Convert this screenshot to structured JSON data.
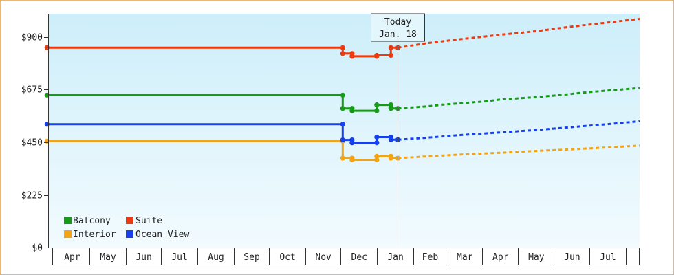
{
  "chart_data": {
    "type": "line",
    "title": "",
    "xlabel": "",
    "ylabel": "",
    "ylim": [
      0,
      1000
    ],
    "y_ticks": [
      {
        "value": 0,
        "label": "$0"
      },
      {
        "value": 225,
        "label": "$225"
      },
      {
        "value": 450,
        "label": "$450"
      },
      {
        "value": 675,
        "label": "$675"
      },
      {
        "value": 900,
        "label": "$900"
      }
    ],
    "x_range": [
      "2025-03-26",
      "2026-08-12"
    ],
    "x_months": [
      {
        "start": "2025-04-01",
        "end": "2025-04-30",
        "label": "Apr"
      },
      {
        "start": "2025-05-01",
        "end": "2025-05-31",
        "label": "May"
      },
      {
        "start": "2025-06-01",
        "end": "2025-06-30",
        "label": "Jun"
      },
      {
        "start": "2025-07-01",
        "end": "2025-07-31",
        "label": "Jul"
      },
      {
        "start": "2025-08-01",
        "end": "2025-08-31",
        "label": "Aug"
      },
      {
        "start": "2025-09-01",
        "end": "2025-09-30",
        "label": "Sep"
      },
      {
        "start": "2025-10-01",
        "end": "2025-10-31",
        "label": "Oct"
      },
      {
        "start": "2025-11-01",
        "end": "2025-11-30",
        "label": "Nov"
      },
      {
        "start": "2025-12-01",
        "end": "2025-12-31",
        "label": "Dec"
      },
      {
        "start": "2026-01-01",
        "end": "2026-01-31",
        "label": "Jan"
      },
      {
        "start": "2026-02-01",
        "end": "2026-02-28",
        "label": "Feb"
      },
      {
        "start": "2026-03-01",
        "end": "2026-03-31",
        "label": "Mar"
      },
      {
        "start": "2026-04-01",
        "end": "2026-04-30",
        "label": "Apr"
      },
      {
        "start": "2026-05-01",
        "end": "2026-05-31",
        "label": "May"
      },
      {
        "start": "2026-06-01",
        "end": "2026-06-30",
        "label": "Jun"
      },
      {
        "start": "2026-07-01",
        "end": "2026-07-31",
        "label": "Jul"
      },
      {
        "start": "2026-08-01",
        "end": "2026-08-12",
        "label": ""
      }
    ],
    "today": {
      "date": "2026-01-18",
      "label_line1": "Today",
      "label_line2": "Jan. 18"
    },
    "grid": false,
    "legend": "bottom-left",
    "series": [
      {
        "name": "Balcony",
        "color": "#169b16",
        "history": [
          {
            "x": "2025-03-25",
            "y": 652
          },
          {
            "x": "2025-12-02",
            "y": 652
          },
          {
            "x": "2025-12-02",
            "y": 595
          },
          {
            "x": "2025-12-10",
            "y": 595
          },
          {
            "x": "2025-12-10",
            "y": 585
          },
          {
            "x": "2025-12-31",
            "y": 585
          },
          {
            "x": "2025-12-31",
            "y": 610
          },
          {
            "x": "2026-01-12",
            "y": 610
          },
          {
            "x": "2026-01-12",
            "y": 595
          },
          {
            "x": "2026-01-18",
            "y": 595
          }
        ],
        "markers": [
          {
            "x": "2025-03-25",
            "y": 652
          },
          {
            "x": "2025-12-02",
            "y": 652
          },
          {
            "x": "2025-12-02",
            "y": 595
          },
          {
            "x": "2025-12-10",
            "y": 595
          },
          {
            "x": "2025-12-10",
            "y": 585
          },
          {
            "x": "2025-12-31",
            "y": 585
          },
          {
            "x": "2025-12-31",
            "y": 610
          },
          {
            "x": "2026-01-12",
            "y": 610
          },
          {
            "x": "2026-01-12",
            "y": 595
          },
          {
            "x": "2026-01-18",
            "y": 595
          }
        ],
        "forecast": [
          {
            "x": "2026-01-18",
            "y": 595
          },
          {
            "x": "2026-02-13",
            "y": 604
          },
          {
            "x": "2026-02-25",
            "y": 611
          },
          {
            "x": "2026-04-03",
            "y": 625
          },
          {
            "x": "2026-04-15",
            "y": 633
          },
          {
            "x": "2026-05-15",
            "y": 643
          },
          {
            "x": "2026-06-05",
            "y": 652
          },
          {
            "x": "2026-06-30",
            "y": 665
          },
          {
            "x": "2026-08-12",
            "y": 682
          }
        ]
      },
      {
        "name": "Suite",
        "color": "#ec3a10",
        "history": [
          {
            "x": "2025-03-25",
            "y": 855
          },
          {
            "x": "2025-12-02",
            "y": 855
          },
          {
            "x": "2025-12-02",
            "y": 830
          },
          {
            "x": "2025-12-10",
            "y": 830
          },
          {
            "x": "2025-12-10",
            "y": 818
          },
          {
            "x": "2025-12-31",
            "y": 818
          },
          {
            "x": "2025-12-31",
            "y": 822
          },
          {
            "x": "2026-01-12",
            "y": 822
          },
          {
            "x": "2026-01-12",
            "y": 855
          },
          {
            "x": "2026-01-18",
            "y": 855
          }
        ],
        "markers": [
          {
            "x": "2025-03-25",
            "y": 855
          },
          {
            "x": "2025-12-02",
            "y": 855
          },
          {
            "x": "2025-12-02",
            "y": 830
          },
          {
            "x": "2025-12-10",
            "y": 830
          },
          {
            "x": "2025-12-10",
            "y": 818
          },
          {
            "x": "2025-12-31",
            "y": 818
          },
          {
            "x": "2025-12-31",
            "y": 822
          },
          {
            "x": "2026-01-12",
            "y": 822
          },
          {
            "x": "2026-01-12",
            "y": 855
          },
          {
            "x": "2026-01-18",
            "y": 855
          }
        ],
        "forecast": [
          {
            "x": "2026-01-18",
            "y": 855
          },
          {
            "x": "2026-02-13",
            "y": 875
          },
          {
            "x": "2026-03-10",
            "y": 890
          },
          {
            "x": "2026-04-15",
            "y": 910
          },
          {
            "x": "2026-05-15",
            "y": 925
          },
          {
            "x": "2026-06-15",
            "y": 945
          },
          {
            "x": "2026-07-15",
            "y": 962
          },
          {
            "x": "2026-08-12",
            "y": 978
          }
        ]
      },
      {
        "name": "Interior",
        "color": "#f2a414",
        "history": [
          {
            "x": "2025-03-25",
            "y": 455
          },
          {
            "x": "2025-12-02",
            "y": 455
          },
          {
            "x": "2025-12-02",
            "y": 382
          },
          {
            "x": "2025-12-10",
            "y": 382
          },
          {
            "x": "2025-12-10",
            "y": 375
          },
          {
            "x": "2025-12-31",
            "y": 375
          },
          {
            "x": "2025-12-31",
            "y": 390
          },
          {
            "x": "2026-01-12",
            "y": 390
          },
          {
            "x": "2026-01-12",
            "y": 382
          },
          {
            "x": "2026-01-18",
            "y": 382
          }
        ],
        "markers": [
          {
            "x": "2025-03-25",
            "y": 455
          },
          {
            "x": "2025-12-02",
            "y": 455
          },
          {
            "x": "2025-12-02",
            "y": 382
          },
          {
            "x": "2025-12-10",
            "y": 382
          },
          {
            "x": "2025-12-10",
            "y": 375
          },
          {
            "x": "2025-12-31",
            "y": 375
          },
          {
            "x": "2025-12-31",
            "y": 390
          },
          {
            "x": "2026-01-12",
            "y": 390
          },
          {
            "x": "2026-01-12",
            "y": 382
          },
          {
            "x": "2026-01-18",
            "y": 382
          }
        ],
        "forecast": [
          {
            "x": "2026-01-18",
            "y": 382
          },
          {
            "x": "2026-02-13",
            "y": 390
          },
          {
            "x": "2026-03-10",
            "y": 397
          },
          {
            "x": "2026-04-15",
            "y": 405
          },
          {
            "x": "2026-05-15",
            "y": 413
          },
          {
            "x": "2026-06-15",
            "y": 420
          },
          {
            "x": "2026-07-15",
            "y": 428
          },
          {
            "x": "2026-08-12",
            "y": 436
          }
        ]
      },
      {
        "name": "Ocean View",
        "color": "#1640ec",
        "history": [
          {
            "x": "2025-03-25",
            "y": 527
          },
          {
            "x": "2025-12-02",
            "y": 527
          },
          {
            "x": "2025-12-02",
            "y": 460
          },
          {
            "x": "2025-12-10",
            "y": 460
          },
          {
            "x": "2025-12-10",
            "y": 448
          },
          {
            "x": "2025-12-31",
            "y": 448
          },
          {
            "x": "2025-12-31",
            "y": 472
          },
          {
            "x": "2026-01-12",
            "y": 472
          },
          {
            "x": "2026-01-12",
            "y": 461
          },
          {
            "x": "2026-01-18",
            "y": 461
          }
        ],
        "markers": [
          {
            "x": "2025-03-25",
            "y": 527
          },
          {
            "x": "2025-12-02",
            "y": 527
          },
          {
            "x": "2025-12-02",
            "y": 460
          },
          {
            "x": "2025-12-10",
            "y": 460
          },
          {
            "x": "2025-12-10",
            "y": 448
          },
          {
            "x": "2025-12-31",
            "y": 448
          },
          {
            "x": "2025-12-31",
            "y": 472
          },
          {
            "x": "2026-01-12",
            "y": 472
          },
          {
            "x": "2026-01-12",
            "y": 461
          },
          {
            "x": "2026-01-18",
            "y": 461
          }
        ],
        "forecast": [
          {
            "x": "2026-01-18",
            "y": 461
          },
          {
            "x": "2026-02-13",
            "y": 470
          },
          {
            "x": "2026-03-10",
            "y": 480
          },
          {
            "x": "2026-04-15",
            "y": 492
          },
          {
            "x": "2026-05-15",
            "y": 502
          },
          {
            "x": "2026-06-15",
            "y": 515
          },
          {
            "x": "2026-07-15",
            "y": 527
          },
          {
            "x": "2026-08-12",
            "y": 540
          }
        ]
      }
    ]
  }
}
